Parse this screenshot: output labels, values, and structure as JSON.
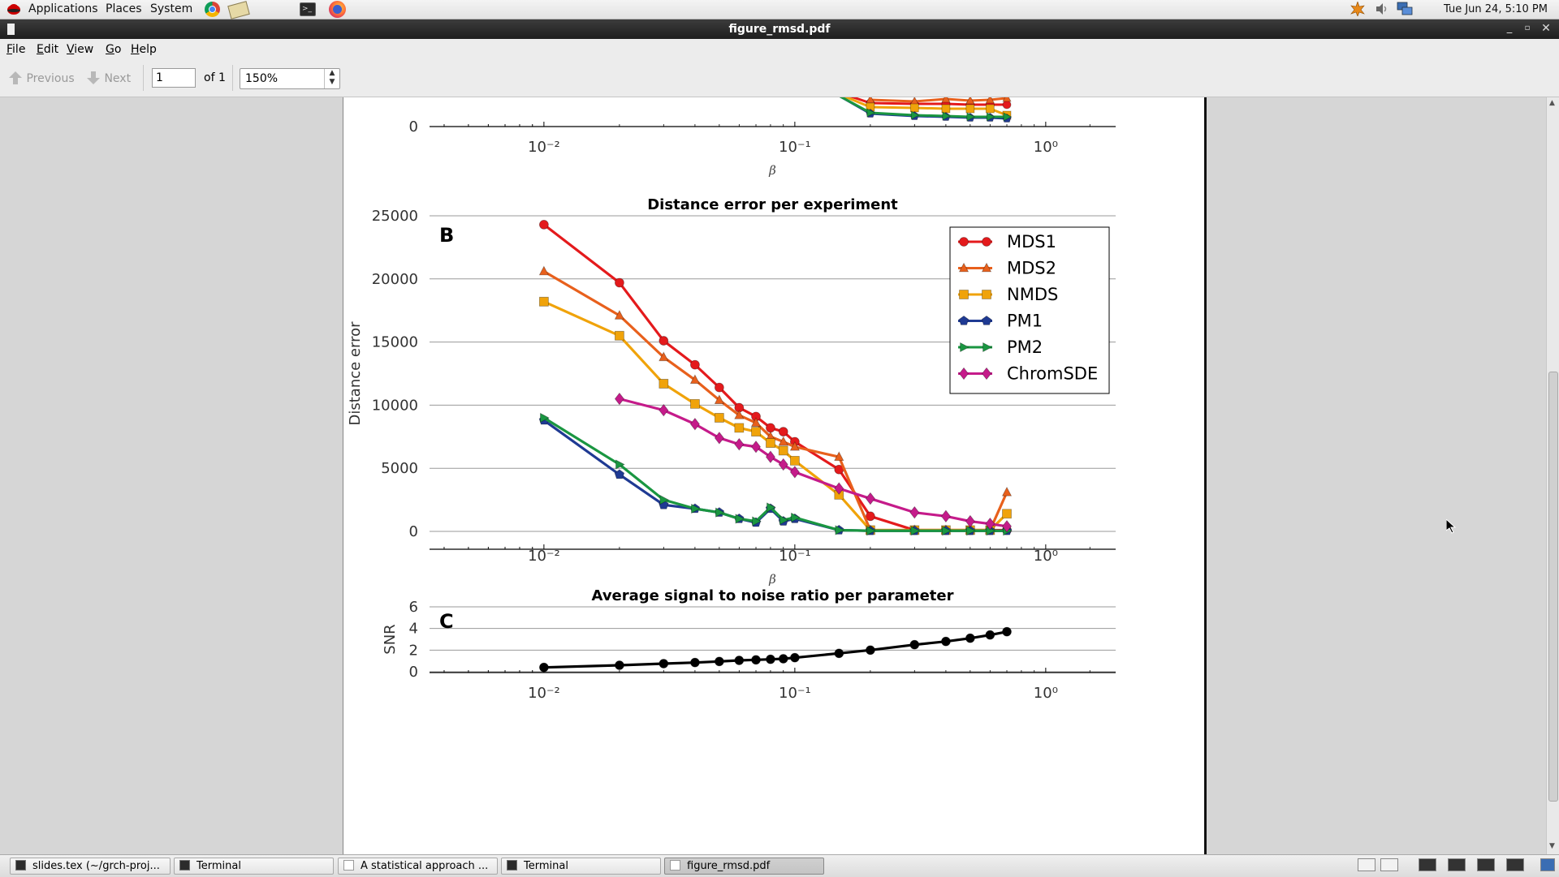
{
  "top_panel": {
    "menus": [
      "Applications",
      "Places",
      "System"
    ],
    "clock": "Tue Jun 24,  5:10 PM"
  },
  "window": {
    "title": "figure_rmsd.pdf"
  },
  "menubar": [
    {
      "label": "File",
      "mnemonic": "F",
      "rest": "ile"
    },
    {
      "label": "Edit",
      "mnemonic": "E",
      "rest": "dit"
    },
    {
      "label": "View",
      "mnemonic": "V",
      "rest": "iew"
    },
    {
      "label": "Go",
      "mnemonic": "G",
      "rest": "o"
    },
    {
      "label": "Help",
      "mnemonic": "H",
      "rest": "elp"
    }
  ],
  "toolbar": {
    "previous_label": "Previous",
    "next_label": "Next",
    "page_value": "1",
    "page_of": "of 1",
    "zoom_value": "150%"
  },
  "taskbar": [
    {
      "label": "slides.tex (~/grch-proj...",
      "icon": "terminal-icon"
    },
    {
      "label": "Terminal",
      "icon": "terminal-icon"
    },
    {
      "label": "A statistical approach ...",
      "icon": "document-icon"
    },
    {
      "label": "Terminal",
      "icon": "terminal-icon"
    },
    {
      "label": "figure_rmsd.pdf",
      "icon": "document-icon",
      "active": true
    }
  ],
  "chart_data": [
    {
      "type": "line",
      "panel": "A (partially visible)",
      "title": "",
      "xlabel": "β",
      "ylabel": "",
      "xscale": "log",
      "xlim": [
        0.0035,
        1.9
      ],
      "x_tick_labels": [
        "10⁻²",
        "10⁻¹",
        "10⁰"
      ],
      "y_tick_labels": [
        "0"
      ],
      "colors": {
        "MDS1": "#e41a1c",
        "MDS2": "#e8601c",
        "NMDS": "#f0a30a",
        "PM1": "#1f3a93",
        "PM2": "#1a9641",
        "ChromSDE": "#c51b8a"
      }
    },
    {
      "type": "line",
      "panel_label": "B",
      "title": "Distance error per experiment",
      "xlabel": "β",
      "ylabel": "Distance error",
      "xscale": "log",
      "xlim": [
        0.0035,
        1.9
      ],
      "ylim": [
        0,
        25000
      ],
      "y_ticks": [
        0,
        5000,
        10000,
        15000,
        20000,
        25000
      ],
      "x_tick_labels": [
        "10⁻²",
        "10⁻¹",
        "10⁰"
      ],
      "legend_position": "top-right",
      "grid": "horizontal",
      "series": [
        {
          "name": "MDS1",
          "color": "#e41a1c",
          "marker": "circle",
          "x": [
            0.01,
            0.02,
            0.03,
            0.04,
            0.05,
            0.06,
            0.07,
            0.08,
            0.09,
            0.1,
            0.15,
            0.2,
            0.3,
            0.4,
            0.5,
            0.6,
            0.7
          ],
          "y": [
            24300,
            19700,
            15100,
            13200,
            11400,
            9800,
            9100,
            8200,
            7900,
            7100,
            4900,
            1200,
            100,
            100,
            100,
            100,
            100
          ]
        },
        {
          "name": "MDS2",
          "color": "#e8601c",
          "marker": "triangle",
          "x": [
            0.01,
            0.02,
            0.03,
            0.04,
            0.05,
            0.06,
            0.07,
            0.08,
            0.09,
            0.1,
            0.15,
            0.2,
            0.3,
            0.4,
            0.5,
            0.6,
            0.7
          ],
          "y": [
            20600,
            17100,
            13800,
            12000,
            10400,
            9200,
            8600,
            7500,
            7100,
            6700,
            5900,
            100,
            100,
            100,
            100,
            100,
            3100
          ]
        },
        {
          "name": "NMDS",
          "color": "#f0a30a",
          "marker": "square",
          "x": [
            0.01,
            0.02,
            0.03,
            0.04,
            0.05,
            0.06,
            0.07,
            0.08,
            0.09,
            0.1,
            0.15,
            0.2,
            0.3,
            0.4,
            0.5,
            0.6,
            0.7
          ],
          "y": [
            18200,
            15500,
            11700,
            10100,
            9000,
            8200,
            7900,
            7000,
            6400,
            5600,
            2900,
            100,
            100,
            100,
            100,
            100,
            1400
          ]
        },
        {
          "name": "PM1",
          "color": "#1f3a93",
          "marker": "pentagon",
          "x": [
            0.01,
            0.02,
            0.03,
            0.04,
            0.05,
            0.06,
            0.07,
            0.08,
            0.09,
            0.1,
            0.15,
            0.2,
            0.3,
            0.4,
            0.5,
            0.6,
            0.7
          ],
          "y": [
            8800,
            4500,
            2100,
            1800,
            1500,
            1000,
            700,
            1800,
            800,
            1000,
            100,
            50,
            50,
            50,
            50,
            50,
            50
          ]
        },
        {
          "name": "PM2",
          "color": "#1a9641",
          "marker": "triangle-right",
          "x": [
            0.01,
            0.02,
            0.03,
            0.04,
            0.05,
            0.06,
            0.07,
            0.08,
            0.09,
            0.1,
            0.15,
            0.2,
            0.3,
            0.4,
            0.5,
            0.6,
            0.7
          ],
          "y": [
            9000,
            5300,
            2500,
            1800,
            1500,
            1000,
            800,
            1900,
            900,
            1100,
            100,
            50,
            50,
            50,
            50,
            50,
            50
          ]
        },
        {
          "name": "ChromSDE",
          "color": "#c51b8a",
          "marker": "diamond",
          "x": [
            0.02,
            0.03,
            0.04,
            0.05,
            0.06,
            0.07,
            0.08,
            0.09,
            0.1,
            0.15,
            0.2,
            0.3,
            0.4,
            0.5,
            0.6,
            0.7
          ],
          "y": [
            10500,
            9600,
            8500,
            7400,
            6900,
            6700,
            5900,
            5300,
            4700,
            3400,
            2600,
            1500,
            1200,
            800,
            600,
            400
          ]
        }
      ]
    },
    {
      "type": "line",
      "panel_label": "C",
      "title": "Average signal to noise ratio per parameter",
      "xlabel": "",
      "ylabel": "SNR",
      "xscale": "log",
      "xlim": [
        0.0035,
        1.9
      ],
      "ylim": [
        0,
        6
      ],
      "y_ticks": [
        0,
        2,
        4,
        6
      ],
      "x_tick_labels": [
        "10⁻²",
        "10⁻¹",
        "10⁰"
      ],
      "grid": "horizontal",
      "series": [
        {
          "color": "#000000",
          "marker": "circle",
          "x": [
            0.01,
            0.02,
            0.03,
            0.04,
            0.05,
            0.06,
            0.07,
            0.08,
            0.09,
            0.1,
            0.15,
            0.2,
            0.3,
            0.4,
            0.5,
            0.6,
            0.7
          ],
          "y": [
            0.4,
            0.6,
            0.75,
            0.85,
            0.95,
            1.05,
            1.1,
            1.15,
            1.2,
            1.3,
            1.7,
            2.0,
            2.5,
            2.8,
            3.1,
            3.4,
            3.7
          ]
        }
      ]
    }
  ]
}
